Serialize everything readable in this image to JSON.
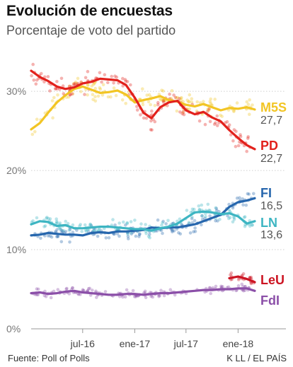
{
  "header": {
    "title": "Evolución de encuestas",
    "subtitle": "Porcentaje de voto del partido"
  },
  "footer": {
    "source": "Fuente: Poll of Polls",
    "credit": "K LL / EL PAÍS"
  },
  "chart_data": {
    "type": "line",
    "title": "Evolución de encuestas",
    "subtitle": "Porcentaje de voto del partido",
    "xlabel": "",
    "ylabel": "",
    "x_range": [
      "2016-01-01",
      "2018-03-01"
    ],
    "x_ticks": [
      {
        "date": "2016-07-01",
        "label": "jul-16"
      },
      {
        "date": "2017-01-01",
        "label": "ene-17"
      },
      {
        "date": "2017-07-01",
        "label": "jul-17"
      },
      {
        "date": "2018-01-01",
        "label": "ene-18"
      }
    ],
    "ylim": [
      0,
      36
    ],
    "y_ticks": [
      {
        "value": 0,
        "label": "0%"
      },
      {
        "value": 10,
        "label": "10%"
      },
      {
        "value": 20,
        "label": "20%"
      },
      {
        "value": 30,
        "label": "30%"
      }
    ],
    "grid": "horizontal dotted",
    "legend": "direct labels at right end of lines",
    "scatter_points": "individual polls shown as translucent dots around each trend line",
    "series": [
      {
        "name": "M5S",
        "label": "M5S",
        "final_value": "27,7",
        "color": "#f2c524",
        "dates": [
          "2016-01-01",
          "2016-02-01",
          "2016-03-01",
          "2016-04-01",
          "2016-05-01",
          "2016-06-01",
          "2016-07-01",
          "2016-08-01",
          "2016-09-01",
          "2016-10-01",
          "2016-11-01",
          "2016-12-01",
          "2017-01-01",
          "2017-02-01",
          "2017-03-01",
          "2017-04-01",
          "2017-05-01",
          "2017-06-01",
          "2017-07-01",
          "2017-08-01",
          "2017-09-01",
          "2017-10-01",
          "2017-11-01",
          "2017-12-01",
          "2018-01-01",
          "2018-02-01",
          "2018-03-01"
        ],
        "values": [
          25.2,
          26.0,
          27.3,
          28.6,
          29.5,
          30.3,
          30.6,
          30.2,
          29.8,
          29.9,
          30.1,
          29.6,
          28.6,
          28.9,
          29.1,
          29.4,
          28.9,
          28.7,
          28.3,
          28.1,
          28.4,
          28.0,
          27.6,
          27.9,
          27.8,
          28.0,
          27.7
        ]
      },
      {
        "name": "PD",
        "label": "PD",
        "final_value": "22,7",
        "color": "#e2211c",
        "dates": [
          "2016-01-01",
          "2016-02-01",
          "2016-03-01",
          "2016-04-01",
          "2016-05-01",
          "2016-06-01",
          "2016-07-01",
          "2016-08-01",
          "2016-09-01",
          "2016-10-01",
          "2016-11-01",
          "2016-12-01",
          "2017-01-01",
          "2017-02-01",
          "2017-03-01",
          "2017-04-01",
          "2017-05-01",
          "2017-06-01",
          "2017-07-01",
          "2017-08-01",
          "2017-09-01",
          "2017-10-01",
          "2017-11-01",
          "2017-12-01",
          "2018-01-01",
          "2018-02-01",
          "2018-03-01"
        ],
        "values": [
          32.6,
          31.8,
          31.3,
          30.6,
          30.3,
          30.5,
          31.0,
          31.2,
          31.6,
          31.5,
          31.4,
          30.8,
          29.2,
          27.3,
          26.6,
          28.0,
          28.6,
          28.8,
          27.6,
          27.1,
          27.4,
          26.7,
          26.2,
          25.1,
          24.1,
          23.2,
          22.7
        ]
      },
      {
        "name": "FI",
        "label": "FI",
        "final_value": "16,5",
        "color": "#2666ad",
        "dates": [
          "2016-01-01",
          "2016-02-01",
          "2016-03-01",
          "2016-04-01",
          "2016-05-01",
          "2016-06-01",
          "2016-07-01",
          "2016-08-01",
          "2016-09-01",
          "2016-10-01",
          "2016-11-01",
          "2016-12-01",
          "2017-01-01",
          "2017-02-01",
          "2017-03-01",
          "2017-04-01",
          "2017-05-01",
          "2017-06-01",
          "2017-07-01",
          "2017-08-01",
          "2017-09-01",
          "2017-10-01",
          "2017-11-01",
          "2017-12-01",
          "2018-01-01",
          "2018-02-01",
          "2018-03-01"
        ],
        "values": [
          11.8,
          11.9,
          12.1,
          12.0,
          11.9,
          11.9,
          11.8,
          12.1,
          12.2,
          12.1,
          12.3,
          12.3,
          12.4,
          12.5,
          12.8,
          12.7,
          12.8,
          12.8,
          13.0,
          13.2,
          13.6,
          14.0,
          14.4,
          15.4,
          16.0,
          16.2,
          16.5
        ]
      },
      {
        "name": "LN",
        "label": "LN",
        "final_value": "13,6",
        "color": "#3db5c2",
        "dates": [
          "2016-01-01",
          "2016-02-01",
          "2016-03-01",
          "2016-04-01",
          "2016-05-01",
          "2016-06-01",
          "2016-07-01",
          "2016-08-01",
          "2016-09-01",
          "2016-10-01",
          "2016-11-01",
          "2016-12-01",
          "2017-01-01",
          "2017-02-01",
          "2017-03-01",
          "2017-04-01",
          "2017-05-01",
          "2017-06-01",
          "2017-07-01",
          "2017-08-01",
          "2017-09-01",
          "2017-10-01",
          "2017-11-01",
          "2017-12-01",
          "2018-01-01",
          "2018-02-01",
          "2018-03-01"
        ],
        "values": [
          13.2,
          13.6,
          13.5,
          13.0,
          13.1,
          12.7,
          12.7,
          12.8,
          12.9,
          12.9,
          12.8,
          12.7,
          12.6,
          12.6,
          12.4,
          12.7,
          12.9,
          13.3,
          14.0,
          14.7,
          14.8,
          14.7,
          14.5,
          14.6,
          14.2,
          13.3,
          13.6
        ]
      },
      {
        "name": "LeU",
        "label": "LeU",
        "final_value": "",
        "color": "#cc1422",
        "dates": [
          "2017-12-01",
          "2018-01-01",
          "2018-02-01",
          "2018-03-01"
        ],
        "values": [
          6.4,
          6.6,
          6.3,
          5.9
        ]
      },
      {
        "name": "FdI",
        "label": "FdI",
        "final_value": "",
        "color": "#8b4fa8",
        "dates": [
          "2016-01-01",
          "2016-02-01",
          "2016-03-01",
          "2016-04-01",
          "2016-05-01",
          "2016-06-01",
          "2016-07-01",
          "2016-08-01",
          "2016-09-01",
          "2016-10-01",
          "2016-11-01",
          "2016-12-01",
          "2017-01-01",
          "2017-02-01",
          "2017-03-01",
          "2017-04-01",
          "2017-05-01",
          "2017-06-01",
          "2017-07-01",
          "2017-08-01",
          "2017-09-01",
          "2017-10-01",
          "2017-11-01",
          "2017-12-01",
          "2018-01-01",
          "2018-02-01",
          "2018-03-01"
        ],
        "values": [
          4.5,
          4.6,
          4.4,
          4.5,
          4.7,
          4.8,
          4.6,
          4.5,
          4.4,
          4.3,
          4.3,
          4.4,
          4.4,
          4.3,
          4.4,
          4.5,
          4.5,
          4.6,
          4.7,
          4.8,
          4.9,
          4.9,
          5.0,
          5.0,
          5.1,
          5.1,
          4.8
        ]
      }
    ]
  }
}
